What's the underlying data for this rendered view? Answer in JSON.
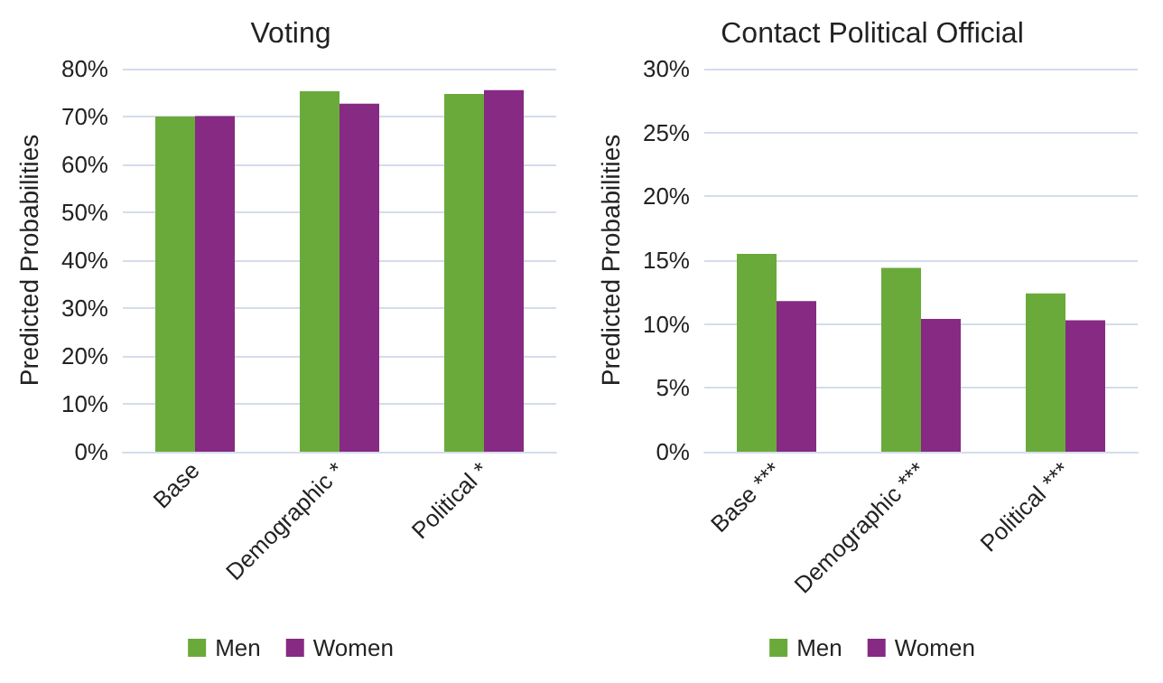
{
  "chart_data": [
    {
      "type": "bar",
      "title": "Voting",
      "ylabel": "Predicted Probabilities",
      "categories": [
        "Base",
        "Demographic *",
        "Political *"
      ],
      "series": [
        {
          "name": "Men",
          "color": "#6aaa3a",
          "values": [
            70.0,
            75.3,
            74.7
          ]
        },
        {
          "name": "Women",
          "color": "#862a84",
          "values": [
            70.1,
            72.7,
            75.5
          ]
        }
      ],
      "ylim": [
        0,
        80
      ],
      "yticks": [
        {
          "value": 0,
          "label": "0%"
        },
        {
          "value": 10,
          "label": "10%"
        },
        {
          "value": 20,
          "label": "20%"
        },
        {
          "value": 30,
          "label": "30%"
        },
        {
          "value": 40,
          "label": "40%"
        },
        {
          "value": 50,
          "label": "50%"
        },
        {
          "value": 60,
          "label": "60%"
        },
        {
          "value": 70,
          "label": "70%"
        },
        {
          "value": 80,
          "label": "80%"
        }
      ],
      "grid": "y",
      "legend": "bottom"
    },
    {
      "type": "bar",
      "title": "Contact Political Official",
      "ylabel": "Predicted Probabilities",
      "categories": [
        "Base ***",
        "Demographic ***",
        "Political ***"
      ],
      "series": [
        {
          "name": "Men",
          "color": "#6aaa3a",
          "values": [
            15.5,
            14.4,
            12.4
          ]
        },
        {
          "name": "Women",
          "color": "#862a84",
          "values": [
            11.8,
            10.4,
            10.3
          ]
        }
      ],
      "ylim": [
        0,
        30
      ],
      "yticks": [
        {
          "value": 0,
          "label": "0%"
        },
        {
          "value": 5,
          "label": "5%"
        },
        {
          "value": 10,
          "label": "10%"
        },
        {
          "value": 15,
          "label": "15%"
        },
        {
          "value": 20,
          "label": "20%"
        },
        {
          "value": 25,
          "label": "25%"
        },
        {
          "value": 30,
          "label": "30%"
        }
      ],
      "grid": "y",
      "legend": "bottom"
    }
  ]
}
